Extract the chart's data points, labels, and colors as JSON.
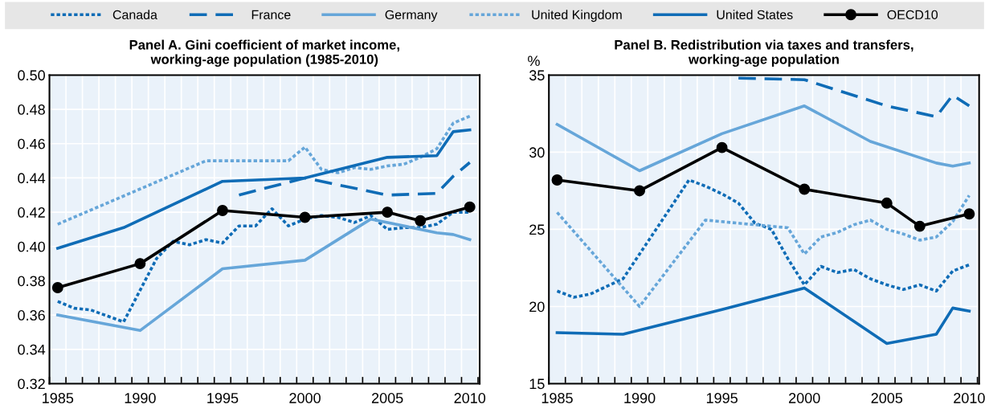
{
  "chart_data": [
    {
      "type": "line",
      "title": "Panel A. Gini coefficient of market income,\nworking-age population (1985-2010)",
      "xlim": [
        1984.5,
        2010.6
      ],
      "xticks": [
        1985,
        1990,
        1995,
        2000,
        2005,
        2010
      ],
      "ylim": [
        0.32,
        0.5
      ],
      "yticks": [
        {
          "value": 0.32,
          "label": "0.32"
        },
        {
          "value": 0.34,
          "label": "0.34"
        },
        {
          "value": 0.36,
          "label": "0.36"
        },
        {
          "value": 0.38,
          "label": "0.38"
        },
        {
          "value": 0.4,
          "label": "0.40"
        },
        {
          "value": 0.42,
          "label": "0.42"
        },
        {
          "value": 0.44,
          "label": "0.44"
        },
        {
          "value": 0.46,
          "label": "0.46"
        },
        {
          "value": 0.48,
          "label": "0.48"
        },
        {
          "value": 0.5,
          "label": "0.50"
        }
      ],
      "grid": true,
      "legend": "top",
      "series": [
        {
          "name": "Canada",
          "color": "#0f6cb6",
          "line_style": "dotted",
          "marker": "none",
          "x": [
            1985,
            1986,
            1987,
            1989,
            1991,
            1992,
            1993,
            1994,
            1995,
            1996,
            1997,
            1998,
            1999,
            2000,
            2001,
            2002,
            2003,
            2004,
            2005,
            2006,
            2007,
            2008,
            2009,
            2010
          ],
          "values": [
            0.368,
            0.364,
            0.363,
            0.356,
            0.393,
            0.403,
            0.401,
            0.404,
            0.402,
            0.412,
            0.412,
            0.422,
            0.412,
            0.416,
            0.418,
            0.417,
            0.414,
            0.418,
            0.41,
            0.411,
            0.411,
            0.413,
            0.42,
            0.42
          ]
        },
        {
          "name": "France",
          "color": "#0f6cb6",
          "line_style": "dashed",
          "marker": "none",
          "x": [
            1996,
            2000,
            2005,
            2008,
            2009,
            2010
          ],
          "values": [
            0.43,
            0.44,
            0.43,
            0.431,
            0.441,
            0.449
          ]
        },
        {
          "name": "Germany",
          "color": "#66a6d9",
          "line_style": "solid",
          "marker": "none",
          "x": [
            1985,
            1990,
            1995,
            2000,
            2004,
            2008,
            2009,
            2010
          ],
          "values": [
            0.36,
            0.351,
            0.387,
            0.392,
            0.416,
            0.408,
            0.407,
            0.404
          ]
        },
        {
          "name": "United Kingdom",
          "color": "#66a6d9",
          "line_style": "dotted",
          "marker": "none",
          "x": [
            1985,
            1994,
            1999,
            2000,
            2001,
            2002,
            2003,
            2004,
            2005,
            2006,
            2007,
            2008,
            2009,
            2010
          ],
          "values": [
            0.413,
            0.45,
            0.45,
            0.458,
            0.445,
            0.443,
            0.446,
            0.445,
            0.447,
            0.448,
            0.452,
            0.457,
            0.472,
            0.476
          ]
        },
        {
          "name": "United States",
          "color": "#0f6cb6",
          "line_style": "solid",
          "marker": "none",
          "x": [
            1985,
            1989,
            1995,
            2000,
            2005,
            2008,
            2009,
            2010
          ],
          "values": [
            0.399,
            0.411,
            0.438,
            0.44,
            0.452,
            0.453,
            0.467,
            0.468
          ]
        },
        {
          "name": "OECD10",
          "color": "#000000",
          "line_style": "solid",
          "marker": "circle",
          "x": [
            1985,
            1990,
            1995,
            2000,
            2005,
            2007,
            2010
          ],
          "values": [
            0.376,
            0.39,
            0.421,
            0.417,
            0.42,
            0.415,
            0.423
          ]
        }
      ]
    },
    {
      "type": "line",
      "title": "Panel B. Redistribution via taxes and transfers,\nworking-age population",
      "ylabel": "%",
      "xlim": [
        1984.5,
        2010.6
      ],
      "xticks": [
        1985,
        1990,
        1995,
        2000,
        2005,
        2010
      ],
      "ylim": [
        15,
        35
      ],
      "yticks": [
        15,
        20,
        25,
        30,
        35
      ],
      "grid": true,
      "series": [
        {
          "color": "#0f6cb6",
          "line_style": "dotted",
          "marker": "none",
          "x": [
            1985,
            1986,
            1987,
            1989,
            1993,
            1994,
            1995,
            1996,
            1997,
            1998,
            1999,
            2000,
            2001,
            2002,
            2003,
            2004,
            2005,
            2006,
            2007,
            2008,
            2009,
            2010
          ],
          "values": [
            21.0,
            20.6,
            20.8,
            21.8,
            28.2,
            27.8,
            27.3,
            26.7,
            25.4,
            25.0,
            23.1,
            21.4,
            22.6,
            22.2,
            22.4,
            21.8,
            21.4,
            21.1,
            21.4,
            21.0,
            22.3,
            22.7
          ]
        },
        {
          "color": "#0f6cb6",
          "line_style": "dashed",
          "marker": "none",
          "x": [
            1996,
            2000,
            2005,
            2008,
            2009,
            2010
          ],
          "values": [
            34.8,
            34.7,
            33.0,
            32.3,
            33.7,
            33.0
          ]
        },
        {
          "color": "#66a6d9",
          "line_style": "solid",
          "marker": "none",
          "x": [
            1985,
            1990,
            1995,
            2000,
            2004,
            2008,
            2009,
            2010
          ],
          "values": [
            31.8,
            28.8,
            31.2,
            33.0,
            30.7,
            29.3,
            29.1,
            29.3
          ]
        },
        {
          "color": "#66a6d9",
          "line_style": "dotted",
          "marker": "none",
          "x": [
            1985,
            1990,
            1994,
            1999,
            2000,
            2001,
            2002,
            2003,
            2004,
            2005,
            2006,
            2007,
            2008,
            2009,
            2010
          ],
          "values": [
            26.1,
            20.0,
            25.6,
            25.1,
            23.4,
            24.5,
            24.8,
            25.3,
            25.6,
            25.0,
            24.7,
            24.3,
            24.5,
            25.5,
            27.2
          ]
        },
        {
          "color": "#0f6cb6",
          "line_style": "solid",
          "marker": "none",
          "x": [
            1985,
            1989,
            1995,
            2000,
            2005,
            2008,
            2009,
            2010
          ],
          "values": [
            18.3,
            18.2,
            19.8,
            21.2,
            17.6,
            18.2,
            19.9,
            19.7
          ]
        },
        {
          "color": "#000000",
          "line_style": "solid",
          "marker": "circle",
          "x": [
            1985,
            1990,
            1995,
            2000,
            2005,
            2007,
            2010
          ],
          "values": [
            28.2,
            27.5,
            30.3,
            27.6,
            26.7,
            25.2,
            26.0
          ]
        }
      ]
    }
  ]
}
